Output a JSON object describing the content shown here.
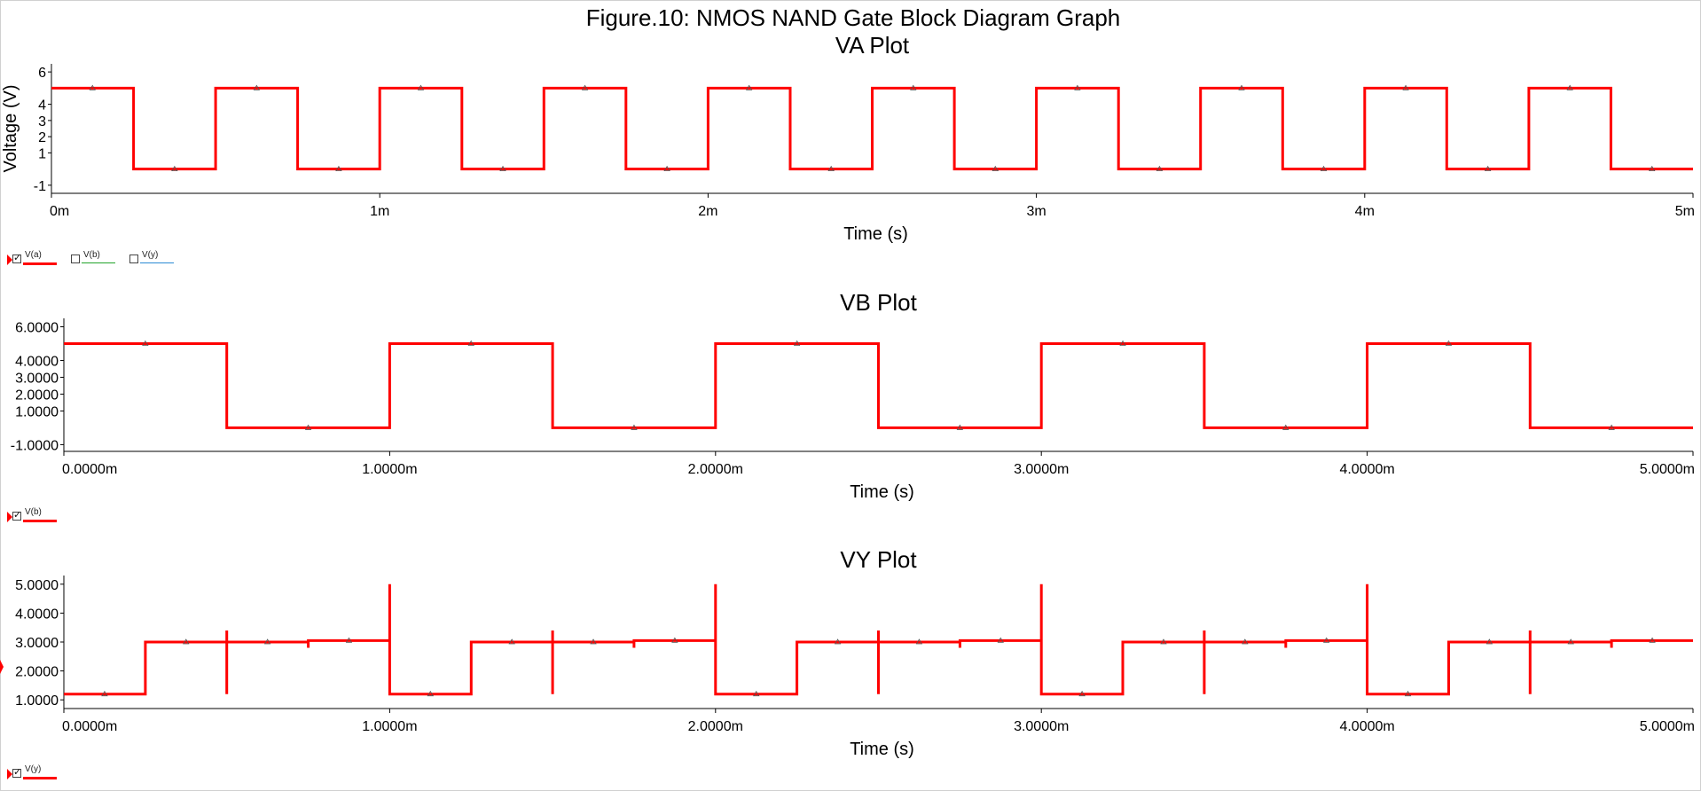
{
  "window": {
    "title": "Figure.10: NMOS NAND Gate Block Diagram Graph"
  },
  "colors": {
    "trace": "#ff0000",
    "vb_legend": "#22a32a",
    "vy_legend": "#2a8ad4",
    "axis": "#000000"
  },
  "chart_data": [
    {
      "type": "line",
      "title": "VA Plot",
      "xlabel": "Time (s)",
      "ylabel": "Voltage (V)",
      "xlim": [
        0,
        5
      ],
      "ylim": [
        -1.5,
        6.5
      ],
      "x_unit": "m",
      "x_ticks": [
        "0m",
        "1m",
        "2m",
        "3m",
        "4m",
        "5m"
      ],
      "y_ticks": [
        "6",
        "4",
        "3",
        "2",
        "1",
        "-1"
      ],
      "y_tick_values": [
        6,
        4,
        3,
        2,
        1,
        -1
      ],
      "grid": false,
      "legend": [
        {
          "label": "V(a)",
          "checked": true,
          "color": "#ff0000"
        },
        {
          "label": "V(b)",
          "checked": false,
          "color": "#22a32a"
        },
        {
          "label": "V(y)",
          "checked": false,
          "color": "#2a8ad4"
        }
      ],
      "legend_position": "bottom-left",
      "series": [
        {
          "name": "V(a)",
          "x": [
            0,
            0.25,
            0.25,
            0.5,
            0.5,
            0.75,
            0.75,
            1.0,
            1.0,
            1.25,
            1.25,
            1.5,
            1.5,
            1.75,
            1.75,
            2.0,
            2.0,
            2.25,
            2.25,
            2.5,
            2.5,
            2.75,
            2.75,
            3.0,
            3.0,
            3.25,
            3.25,
            3.5,
            3.5,
            3.75,
            3.75,
            4.0,
            4.0,
            4.25,
            4.25,
            4.5,
            4.5,
            4.75,
            4.75,
            5.0
          ],
          "y": [
            5,
            5,
            0,
            0,
            5,
            5,
            0,
            0,
            5,
            5,
            0,
            0,
            5,
            5,
            0,
            0,
            5,
            5,
            0,
            0,
            5,
            5,
            0,
            0,
            5,
            5,
            0,
            0,
            5,
            5,
            0,
            0,
            5,
            5,
            0,
            0,
            5,
            5,
            0,
            0
          ]
        }
      ]
    },
    {
      "type": "line",
      "title": "VB Plot",
      "xlabel": "Time (s)",
      "ylabel": "",
      "xlim": [
        0,
        5
      ],
      "ylim": [
        -1.4,
        6.5
      ],
      "x_unit": "m",
      "x_ticks": [
        "0.0000m",
        "1.0000m",
        "2.0000m",
        "3.0000m",
        "4.0000m",
        "5.0000m"
      ],
      "y_ticks": [
        "6.0000",
        "4.0000",
        "3.0000",
        "2.0000",
        "1.0000",
        "-1.0000"
      ],
      "y_tick_values": [
        6,
        4,
        3,
        2,
        1,
        -1
      ],
      "grid": false,
      "legend": [
        {
          "label": "V(b)",
          "checked": true,
          "color": "#ff0000"
        }
      ],
      "legend_position": "bottom-left",
      "series": [
        {
          "name": "V(b)",
          "x": [
            0,
            0.5,
            0.5,
            1.0,
            1.0,
            1.5,
            1.5,
            2.0,
            2.0,
            2.5,
            2.5,
            3.0,
            3.0,
            3.5,
            3.5,
            4.0,
            4.0,
            4.5,
            4.5,
            5.0
          ],
          "y": [
            5,
            5,
            0,
            0,
            5,
            5,
            0,
            0,
            5,
            5,
            0,
            0,
            5,
            5,
            0,
            0,
            5,
            5,
            0,
            0
          ]
        }
      ]
    },
    {
      "type": "line",
      "title": "VY Plot",
      "xlabel": "Time (s)",
      "ylabel": "",
      "xlim": [
        0,
        5
      ],
      "ylim": [
        0.7,
        5.3
      ],
      "x_unit": "m",
      "x_ticks": [
        "0.0000m",
        "1.0000m",
        "2.0000m",
        "3.0000m",
        "4.0000m",
        "5.0000m"
      ],
      "y_ticks": [
        "5.0000",
        "4.0000",
        "3.0000",
        "2.0000",
        "1.0000"
      ],
      "y_tick_values": [
        5,
        4,
        3,
        2,
        1
      ],
      "grid": false,
      "legend": [
        {
          "label": "V(y)",
          "checked": true,
          "color": "#ff0000"
        }
      ],
      "legend_position": "bottom-left",
      "series": [
        {
          "name": "V(y)",
          "x": [
            0,
            0.25,
            0.25,
            0.5,
            0.5,
            0.5,
            0.5,
            0.75,
            0.75,
            0.75,
            0.75,
            1.0,
            1.0,
            1.0,
            1.0,
            1.25,
            1.25,
            1.5,
            1.5,
            1.5,
            1.5,
            1.75,
            1.75,
            1.75,
            1.75,
            2.0,
            2.0,
            2.0,
            2.0,
            2.25,
            2.25,
            2.5,
            2.5,
            2.5,
            2.5,
            2.75,
            2.75,
            2.75,
            2.75,
            3.0,
            3.0,
            3.0,
            3.0,
            3.25,
            3.25,
            3.5,
            3.5,
            3.5,
            3.5,
            3.75,
            3.75,
            3.75,
            3.75,
            4.0,
            4.0,
            4.0,
            4.0,
            4.25,
            4.25,
            4.5,
            4.5,
            4.5,
            4.5,
            4.75,
            4.75,
            4.75,
            4.75,
            5.0
          ],
          "y": [
            1.2,
            1.2,
            3.0,
            3.0,
            3.4,
            1.2,
            3.0,
            3.0,
            2.8,
            3.05,
            3.05,
            3.05,
            5.0,
            1.2,
            1.2,
            1.2,
            3.0,
            3.0,
            3.4,
            1.2,
            3.0,
            3.0,
            2.8,
            3.05,
            3.05,
            3.05,
            5.0,
            1.2,
            1.2,
            1.2,
            3.0,
            3.0,
            3.4,
            1.2,
            3.0,
            3.0,
            2.8,
            3.05,
            3.05,
            3.05,
            5.0,
            1.2,
            1.2,
            1.2,
            3.0,
            3.0,
            3.4,
            1.2,
            3.0,
            3.0,
            2.8,
            3.05,
            3.05,
            3.05,
            5.0,
            1.2,
            1.2,
            1.2,
            3.0,
            3.0,
            3.4,
            1.2,
            3.0,
            3.0,
            2.8,
            3.05,
            3.05,
            3.05
          ]
        }
      ]
    }
  ]
}
